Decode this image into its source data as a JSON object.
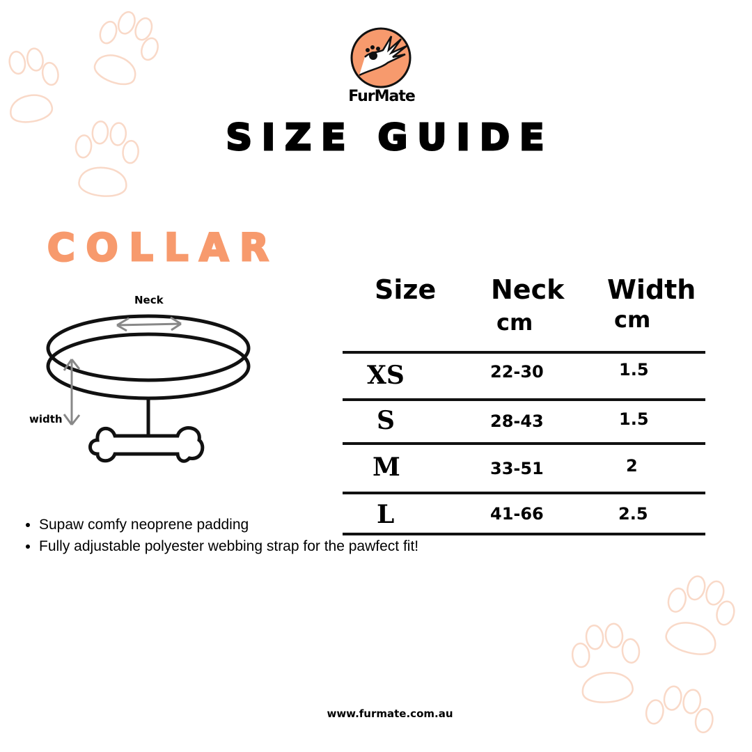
{
  "brand": {
    "name": "FurMate",
    "accent_color": "#f79a6d"
  },
  "title": "SIZE GUIDE",
  "product": "COLLAR",
  "diagram": {
    "neck_label": "Neck",
    "width_label": "width"
  },
  "table": {
    "headers": [
      {
        "label": "Size",
        "unit": ""
      },
      {
        "label": "Neck",
        "unit": "cm"
      },
      {
        "label": "Width",
        "unit": "cm"
      }
    ],
    "rows": [
      {
        "size": "XS",
        "neck": "22-30",
        "width": "1.5"
      },
      {
        "size": "S",
        "neck": "28-43",
        "width": "1.5"
      },
      {
        "size": "M",
        "neck": "33-51",
        "width": "2"
      },
      {
        "size": "L",
        "neck": "41-66",
        "width": "2.5"
      }
    ]
  },
  "features": [
    "Supaw comfy neoprene  padding",
    "Fully adjustable polyester webbing strap for the pawfect fit!"
  ],
  "website": "www.furmate.com.au"
}
